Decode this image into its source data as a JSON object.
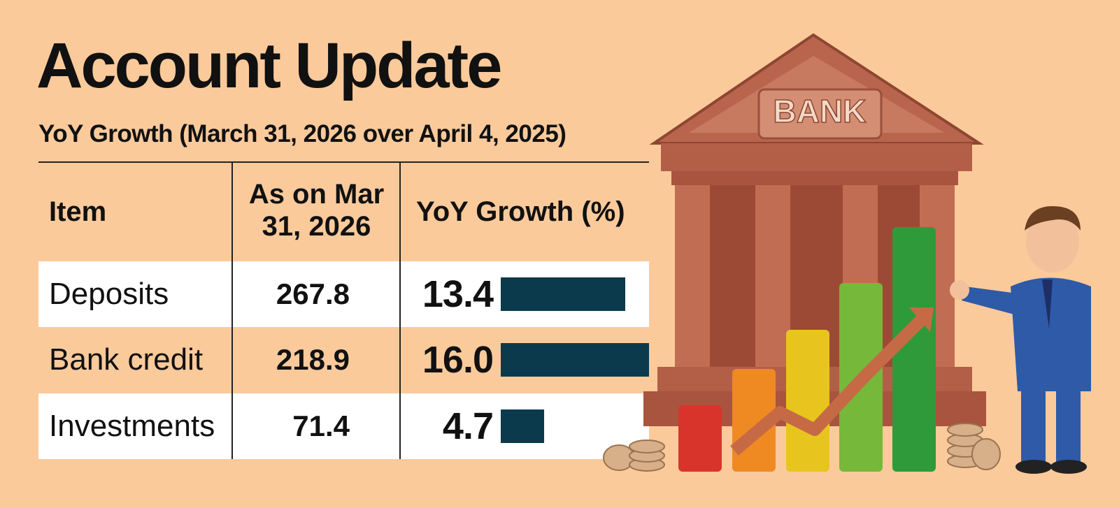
{
  "header": {
    "title": "Account Update",
    "subtitle": "YoY Growth (March 31, 2026 over April 4, 2025)"
  },
  "table": {
    "columns": [
      "Item",
      "As on Mar 31, 2026",
      "YoY Growth (%)"
    ],
    "rows": [
      [
        "Deposits",
        267.8,
        13.4
      ],
      [
        "Bank credit",
        218.9,
        {
          "value": 16.0,
          "label": "16.0"
        }
      ],
      [
        "Investments",
        71.4,
        4.7
      ]
    ],
    "bar_color": "#0b3a4c"
  },
  "illustration": {
    "sign": "BANK"
  }
}
